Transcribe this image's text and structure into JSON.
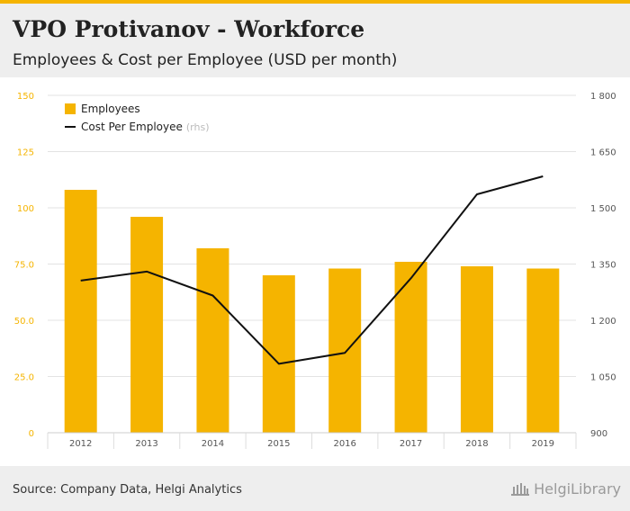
{
  "header": {
    "title": "VPO Protivanov - Workforce",
    "subtitle": "Employees & Cost per Employee (USD per month)"
  },
  "footer": {
    "source": "Source: Company Data, Helgi Analytics",
    "brand": "HelgiLibrary"
  },
  "colors": {
    "accent": "#f5b400",
    "line": "#111111",
    "header_bg": "#eeeeee"
  },
  "chart_data": {
    "type": "bar",
    "categories": [
      "2012",
      "2013",
      "2014",
      "2015",
      "2016",
      "2017",
      "2018",
      "2019"
    ],
    "series": [
      {
        "name": "Employees",
        "type": "bar",
        "axis": "left",
        "values": [
          108,
          96,
          82,
          70,
          73,
          76,
          74,
          73
        ]
      },
      {
        "name": "Cost Per Employee",
        "note": "(rhs)",
        "type": "line",
        "axis": "right",
        "values": [
          1306,
          1330,
          1266,
          1084,
          1113,
          1312,
          1536,
          1584
        ]
      }
    ],
    "y_left": {
      "range": [
        0,
        150
      ],
      "ticks": [
        0,
        25.0,
        50.0,
        75.0,
        100,
        125,
        150
      ],
      "tick_labels": [
        "0",
        "25.0",
        "50.0",
        "75.0",
        "100",
        "125",
        "150"
      ]
    },
    "y_right": {
      "range": [
        900,
        1800
      ],
      "ticks": [
        900,
        1050,
        1200,
        1350,
        1500,
        1650,
        1800
      ],
      "tick_labels": [
        "900",
        "1 050",
        "1 200",
        "1 350",
        "1 500",
        "1 650",
        "1 800"
      ]
    },
    "grid": true,
    "legend_position": "top-left"
  }
}
